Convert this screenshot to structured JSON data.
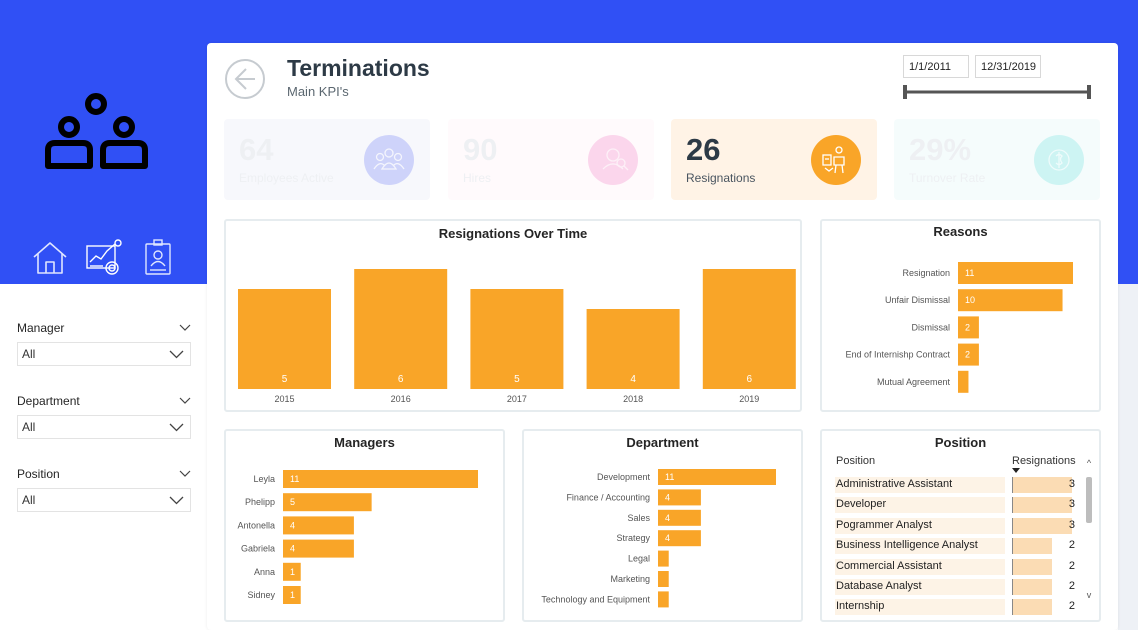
{
  "header": {
    "title": "Terminations",
    "subtitle": "Main KPI's"
  },
  "dates": {
    "start": "1/1/2011",
    "end": "12/31/2019"
  },
  "kpis": [
    {
      "value": "64",
      "label": "Employees Active",
      "icon": "users-icon",
      "color": "#ced3fa",
      "bg": "#f7f8fc",
      "active": false
    },
    {
      "value": "90",
      "label": "Hires",
      "icon": "hires-icon",
      "color": "#fbd6ec",
      "bg": "#fffafc",
      "active": false
    },
    {
      "value": "26",
      "label": "Resignations",
      "icon": "resignation-icon",
      "color": "#f9a528",
      "bg": "#fff3e6",
      "active": true
    },
    {
      "value": "29%",
      "label": "Turnover Rate",
      "icon": "turnover-icon",
      "color": "#cdf4f3",
      "bg": "#f5fcfc",
      "active": false
    }
  ],
  "sidebar": {
    "nav": [
      "home-icon",
      "analytics-icon",
      "employee-badge-icon"
    ],
    "slicers": [
      {
        "label": "Manager",
        "value": "All"
      },
      {
        "label": "Department",
        "value": "All"
      },
      {
        "label": "Position",
        "value": "All"
      }
    ]
  },
  "colors": {
    "accent": "#f9a528",
    "brand": "#3050f5",
    "text": "#2d3a46"
  },
  "chart_data": [
    {
      "type": "bar",
      "title": "Resignations Over Time",
      "categories": [
        "2015",
        "2016",
        "2017",
        "2018",
        "2019"
      ],
      "values": [
        5,
        6,
        5,
        4,
        6
      ],
      "ylim": [
        0,
        6
      ]
    },
    {
      "type": "bar",
      "orientation": "horizontal",
      "title": "Reasons",
      "categories": [
        "Resignation",
        "Unfair Dismissal",
        "Dismissal",
        "End of Internishp Contract",
        "Mutual Agreement"
      ],
      "values": [
        11,
        10,
        2,
        2,
        1
      ],
      "labels": [
        "11",
        "10",
        "2",
        "2",
        ""
      ]
    },
    {
      "type": "bar",
      "orientation": "horizontal",
      "title": "Managers",
      "categories": [
        "Leyla",
        "Phelipp",
        "Antonella",
        "Gabriela",
        "Anna",
        "Sidney"
      ],
      "values": [
        11,
        5,
        4,
        4,
        1,
        1
      ]
    },
    {
      "type": "bar",
      "orientation": "horizontal",
      "title": "Department",
      "categories": [
        "Development",
        "Finance / Accounting",
        "Sales",
        "Strategy",
        "Legal",
        "Marketing",
        "Technology and Equipment"
      ],
      "values": [
        11,
        4,
        4,
        4,
        1,
        1,
        1
      ],
      "labels": [
        "11",
        "4",
        "4",
        "4",
        "",
        "",
        ""
      ]
    },
    {
      "type": "table",
      "title": "Position",
      "columns": [
        "Position",
        "Resignations"
      ],
      "rows": [
        [
          "Administrative Assistant",
          3
        ],
        [
          "Developer",
          3
        ],
        [
          "Pogrammer Analyst",
          3
        ],
        [
          "Business Intelligence Analyst",
          2
        ],
        [
          "Commercial Assistant",
          2
        ],
        [
          "Database Analyst",
          2
        ],
        [
          "Internship",
          2
        ]
      ]
    }
  ]
}
